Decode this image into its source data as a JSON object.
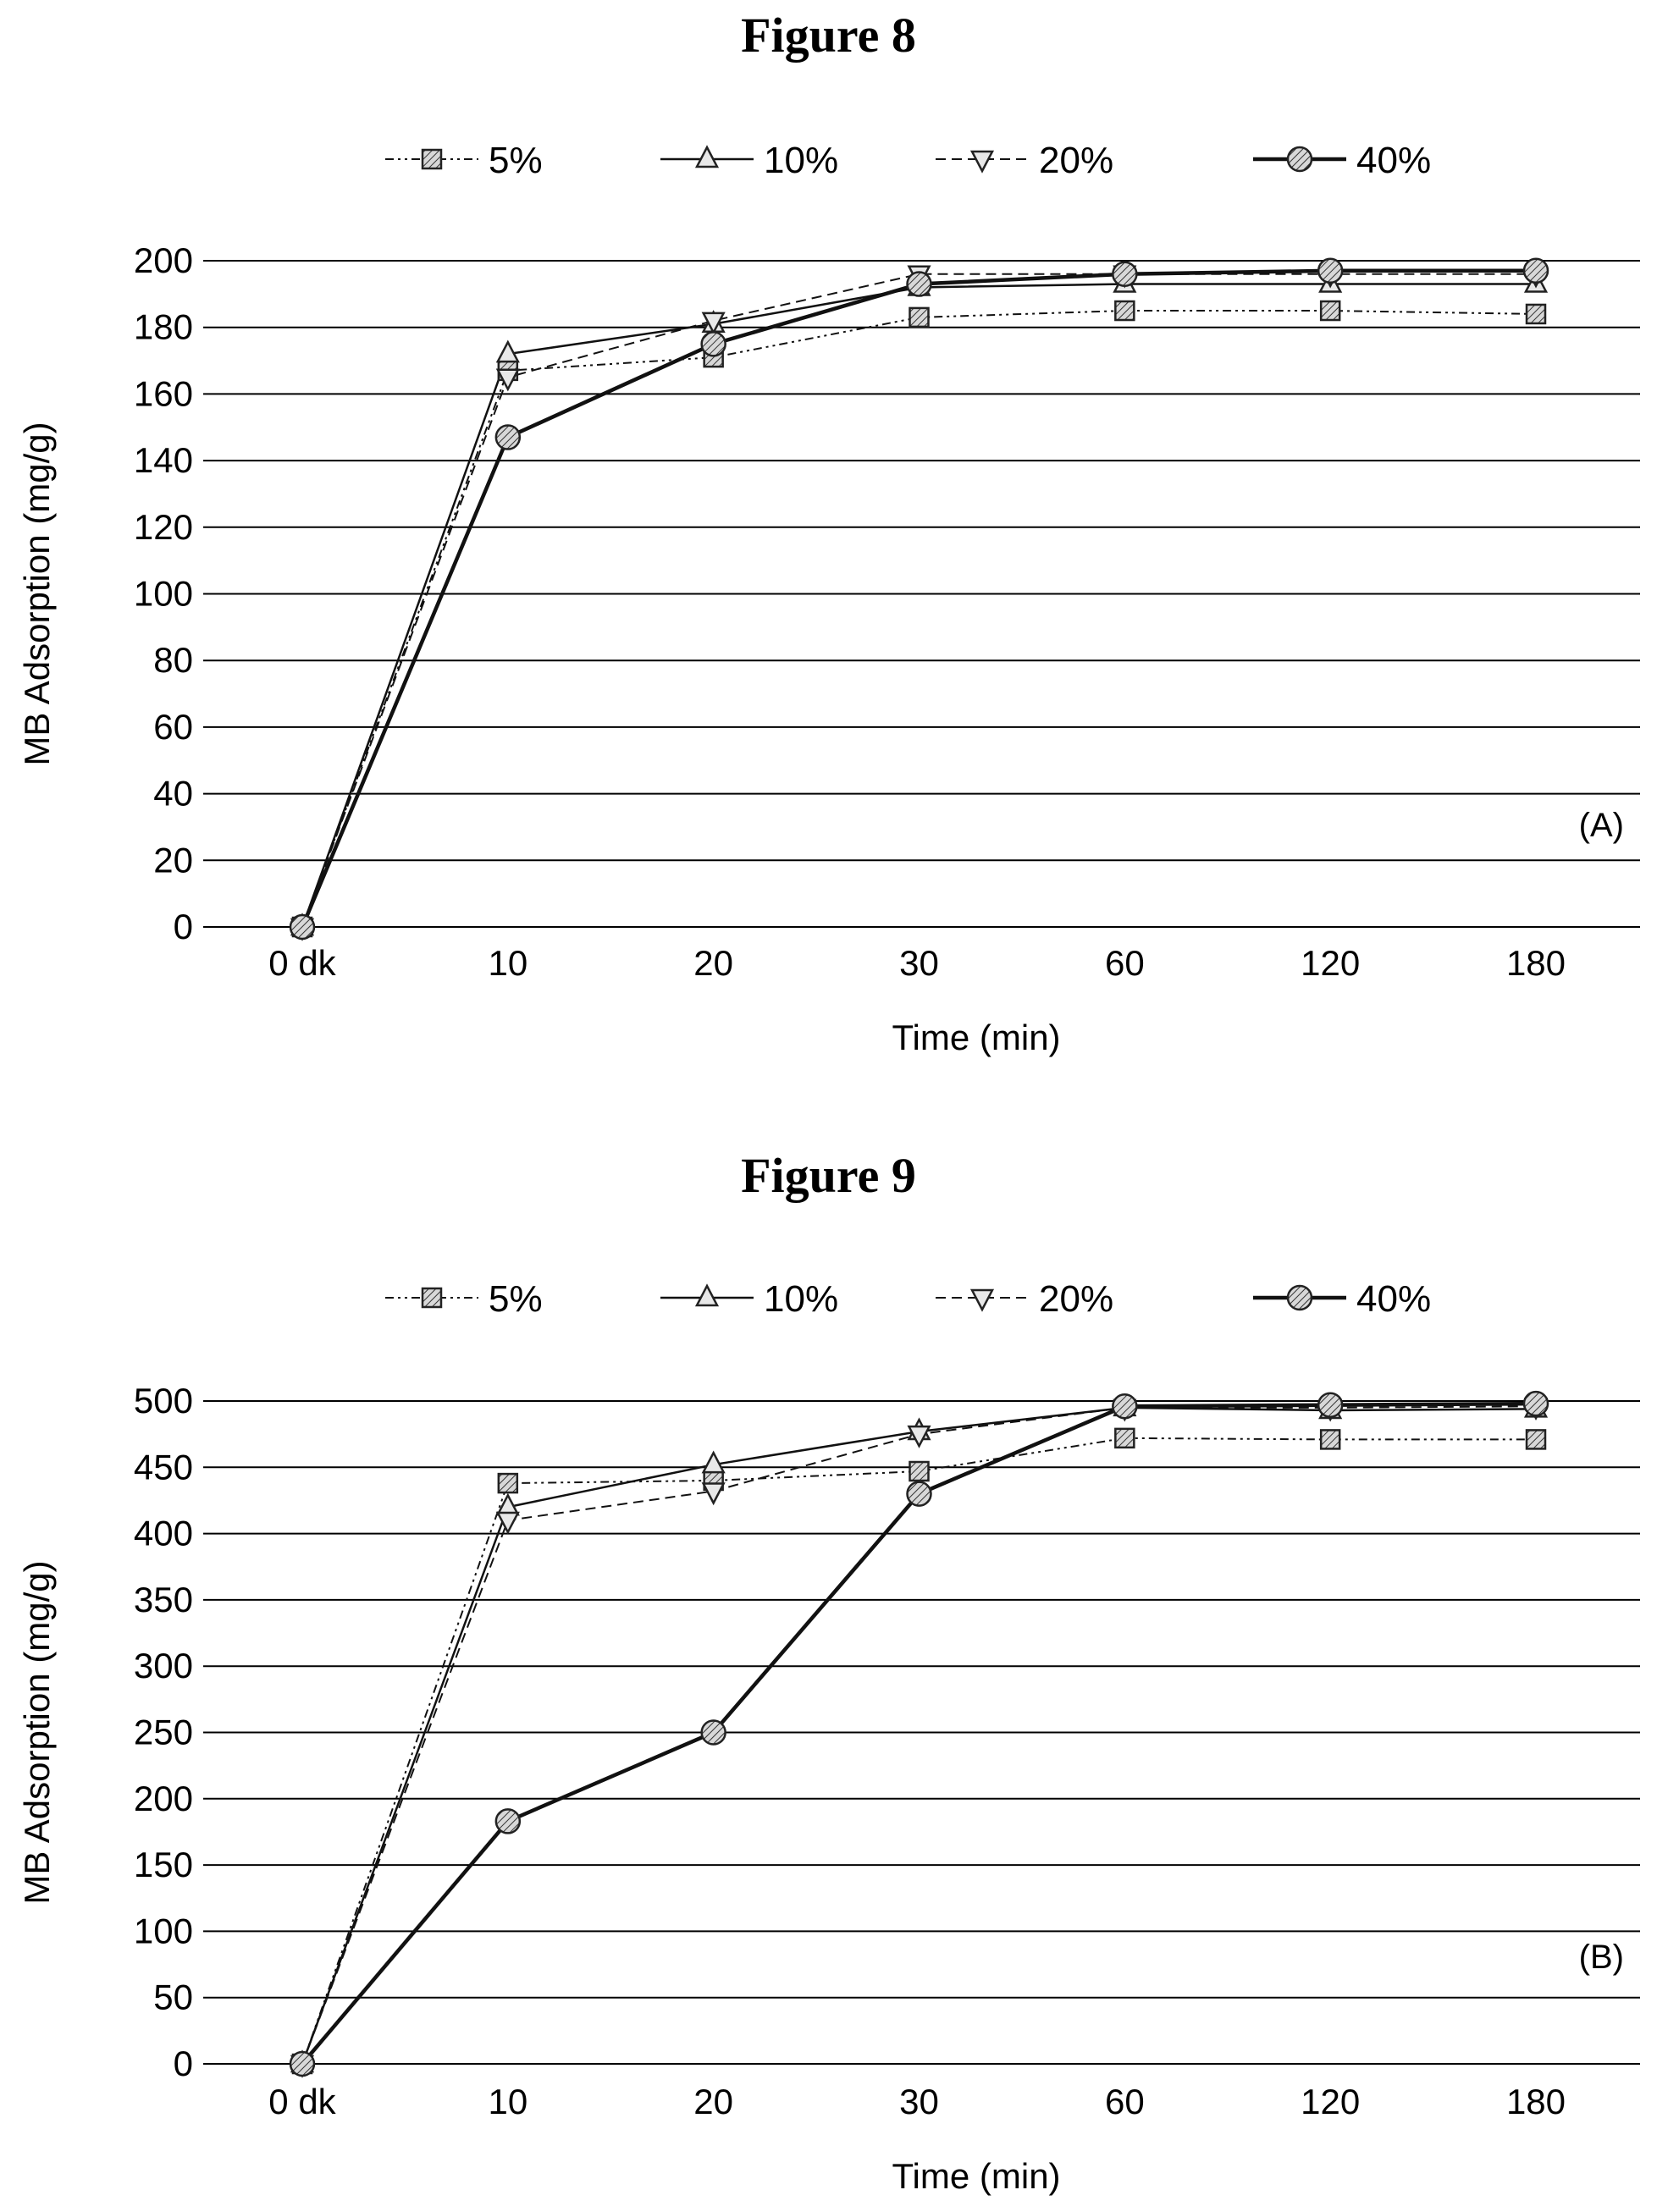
{
  "figures": {
    "fig8_title": "Figure 8",
    "fig9_title": "Figure 9"
  },
  "chart_data": [
    {
      "type": "line",
      "title": "Figure 8",
      "panel": "(A)",
      "xlabel": "Time (min)",
      "ylabel": "MB Adsorption (mg/g)",
      "categories": [
        "0 dk",
        "10",
        "20",
        "30",
        "60",
        "120",
        "180"
      ],
      "ylim": [
        0,
        200
      ],
      "yticks": [
        0,
        20,
        40,
        60,
        80,
        100,
        120,
        140,
        160,
        180,
        200
      ],
      "grid": true,
      "legend_position": "top",
      "series": [
        {
          "name": "5%",
          "marker": "square",
          "dash": "dash-dot-dot",
          "values": [
            0,
            167,
            171,
            183,
            185,
            185,
            184
          ]
        },
        {
          "name": "10%",
          "marker": "triangle-up",
          "dash": "solid",
          "values": [
            0,
            172,
            181,
            192,
            193,
            193,
            193
          ]
        },
        {
          "name": "20%",
          "marker": "triangle-down",
          "dash": "dashed",
          "values": [
            0,
            165,
            182,
            196,
            196,
            196,
            196
          ]
        },
        {
          "name": "40%",
          "marker": "circle",
          "dash": "solid-thick",
          "values": [
            0,
            147,
            175,
            193,
            196,
            197,
            197
          ]
        }
      ]
    },
    {
      "type": "line",
      "title": "Figure 9",
      "panel": "(B)",
      "xlabel": "Time (min)",
      "ylabel": "MB Adsorption (mg/g)",
      "categories": [
        "0 dk",
        "10",
        "20",
        "30",
        "60",
        "120",
        "180"
      ],
      "ylim": [
        0,
        500
      ],
      "yticks": [
        0,
        50,
        100,
        150,
        200,
        250,
        300,
        350,
        400,
        450,
        500
      ],
      "grid": true,
      "legend_position": "top",
      "series": [
        {
          "name": "5%",
          "marker": "square",
          "dash": "dash-dot-dot",
          "values": [
            0,
            438,
            440,
            447,
            472,
            471,
            471
          ]
        },
        {
          "name": "10%",
          "marker": "triangle-up",
          "dash": "solid",
          "values": [
            0,
            420,
            452,
            477,
            495,
            493,
            494
          ]
        },
        {
          "name": "20%",
          "marker": "triangle-down",
          "dash": "dashed",
          "values": [
            0,
            410,
            432,
            475,
            495,
            495,
            496
          ]
        },
        {
          "name": "40%",
          "marker": "circle",
          "dash": "solid-thick",
          "values": [
            0,
            183,
            250,
            430,
            496,
            497,
            498
          ]
        }
      ]
    }
  ]
}
